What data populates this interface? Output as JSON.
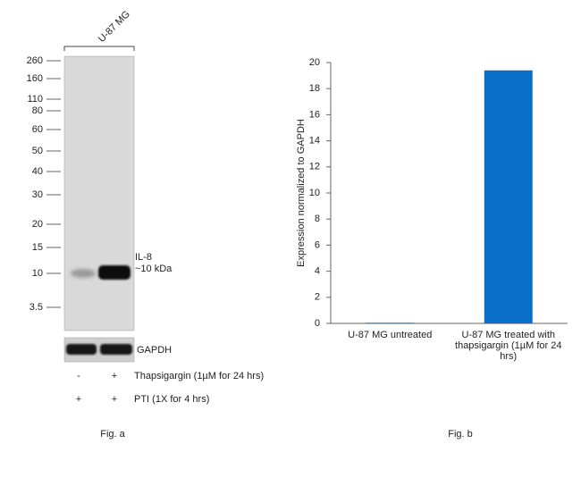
{
  "figure_a": {
    "lane_label": "U-87 MG",
    "markers": [
      "260",
      "160",
      "110",
      "80",
      "60",
      "50",
      "40",
      "30",
      "20",
      "15",
      "10",
      "3.5"
    ],
    "band_label": "IL-8",
    "band_size": "~10 kDa",
    "loading_control": "GAPDH",
    "treatments": [
      {
        "signs": [
          "-",
          "+"
        ],
        "label": "Thapsigargin (1µM for 24 hrs)"
      },
      {
        "signs": [
          "+",
          "+"
        ],
        "label": "PTI (1X for 4 hrs)"
      }
    ],
    "caption": "Fig. a"
  },
  "chart_data": {
    "type": "bar",
    "categories": [
      "U-87 MG untreated",
      "U-87 MG treated with thapsigargin (1µM for 24 hrs)"
    ],
    "values": [
      0.05,
      19.4
    ],
    "color": "#0a6fc9",
    "ylabel": "Expression  normalized to GAPDH",
    "ylim": [
      0,
      20
    ],
    "yticks": [
      0,
      2,
      4,
      6,
      8,
      10,
      12,
      14,
      16,
      18,
      20
    ],
    "caption": "Fig. b"
  }
}
